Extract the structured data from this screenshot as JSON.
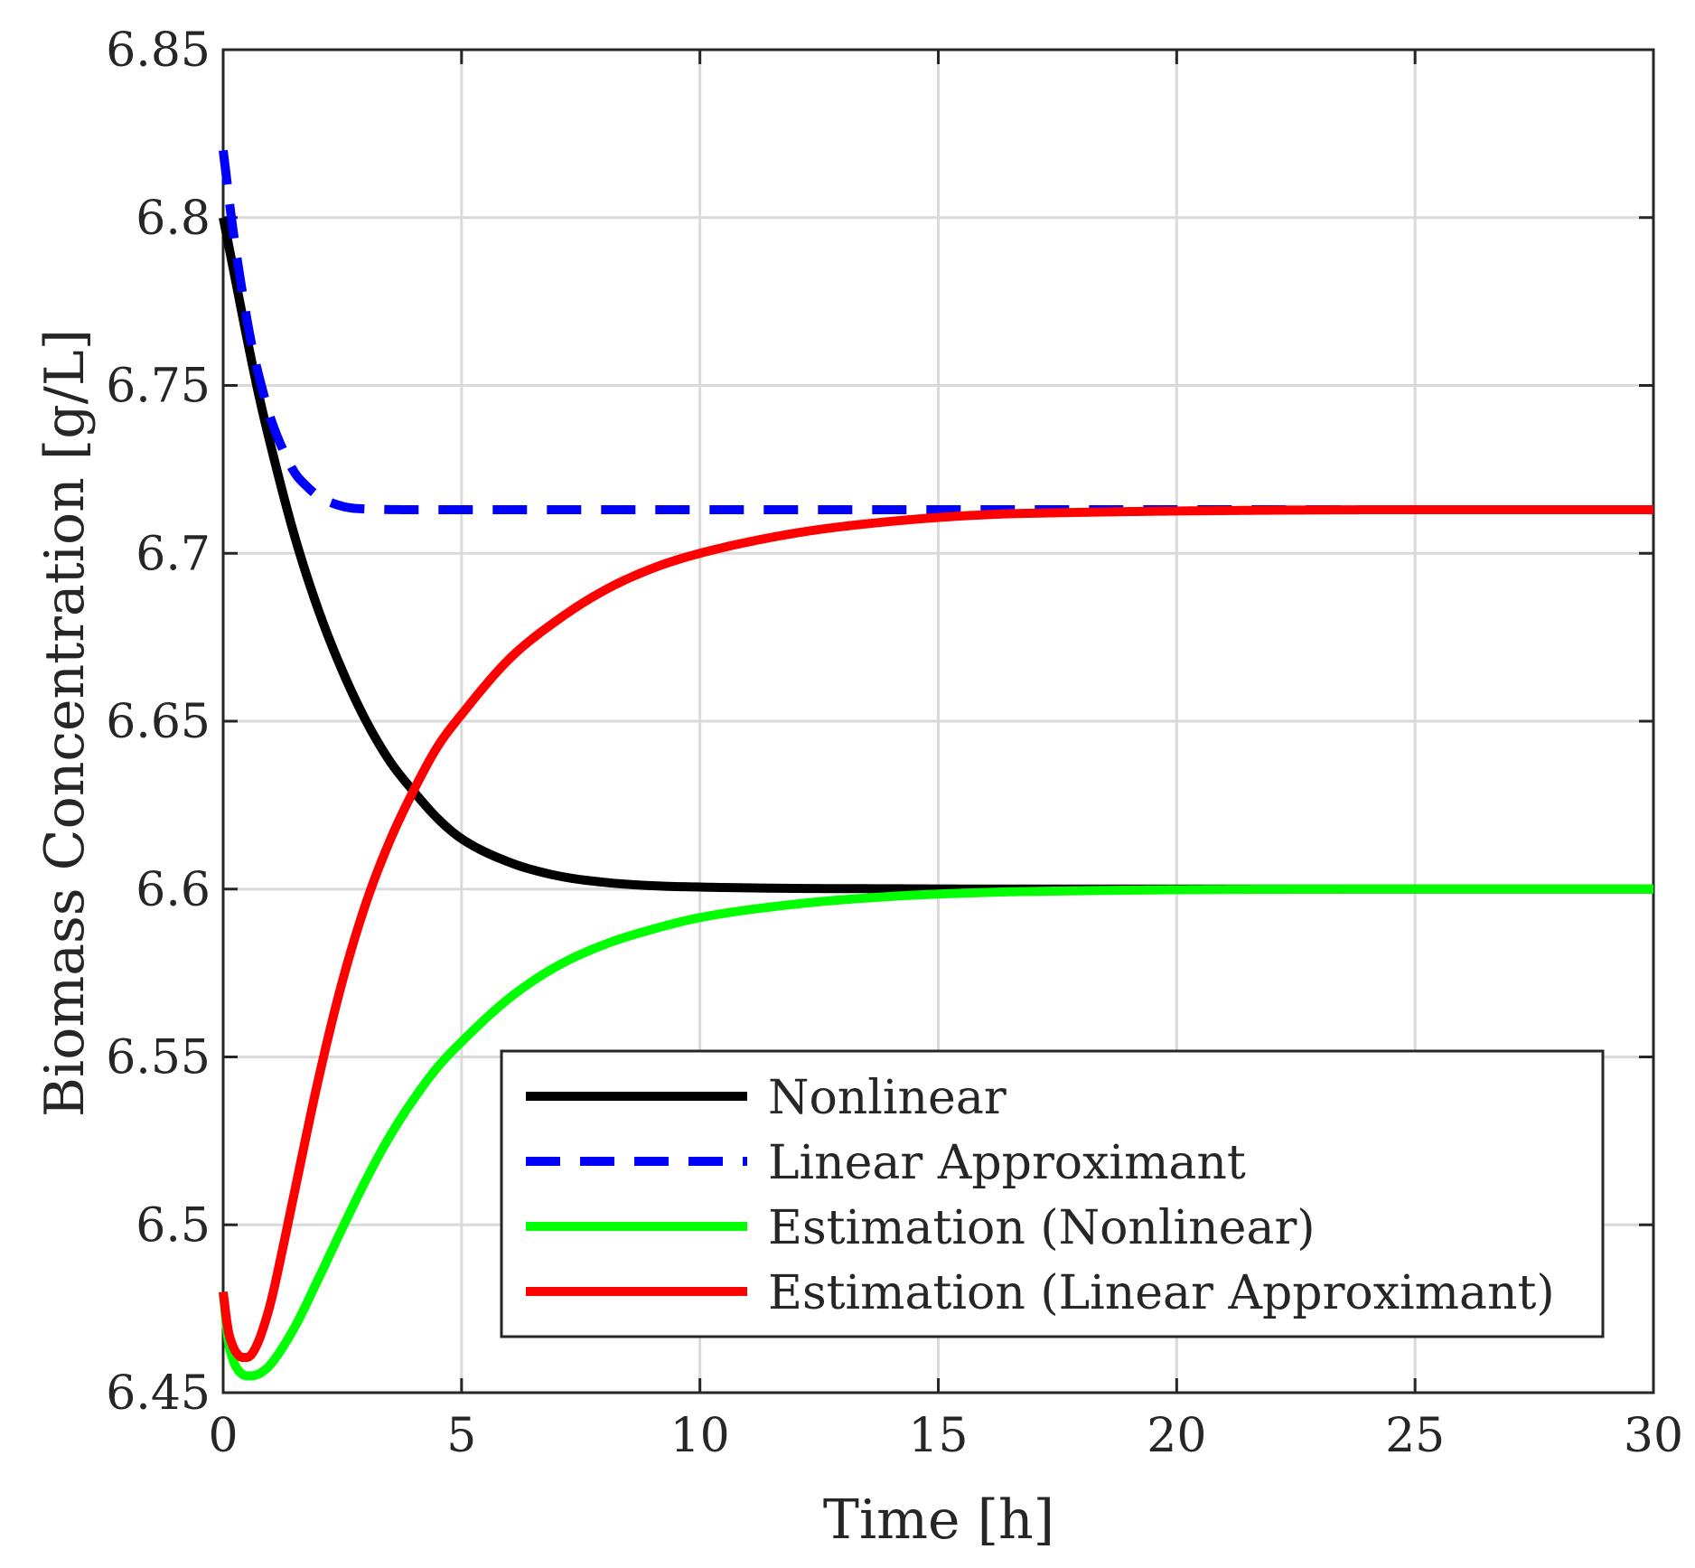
{
  "chart_data": {
    "type": "line",
    "title": "",
    "xlabel": "Time [h]",
    "ylabel": "Biomass Concentration [g/L]",
    "xlim": [
      0,
      30
    ],
    "ylim": [
      6.45,
      6.85
    ],
    "grid": true,
    "legend_position": "bottom-right",
    "x_ticks": [
      0,
      5,
      10,
      15,
      20,
      25,
      30
    ],
    "x_tick_labels": [
      "0",
      "5",
      "10",
      "15",
      "20",
      "25",
      "30"
    ],
    "y_ticks": [
      6.45,
      6.5,
      6.55,
      6.6,
      6.65,
      6.7,
      6.75,
      6.8,
      6.85
    ],
    "y_tick_labels": [
      "6.45",
      "6.5",
      "6.55",
      "6.6",
      "6.65",
      "6.7",
      "6.75",
      "6.8",
      "6.85"
    ],
    "series": [
      {
        "name": "Nonlinear",
        "color": "#000000",
        "style": "solid",
        "x": [
          0,
          0.25,
          0.5,
          0.75,
          1,
          1.5,
          2,
          2.5,
          3,
          3.5,
          4,
          4.5,
          5,
          6,
          7,
          8,
          9,
          10,
          12,
          14,
          16,
          18,
          20,
          25,
          30
        ],
        "y": [
          6.8,
          6.782,
          6.764,
          6.747,
          6.732,
          6.705,
          6.683,
          6.665,
          6.65,
          6.638,
          6.629,
          6.621,
          6.615,
          6.608,
          6.604,
          6.602,
          6.601,
          6.6006,
          6.6002,
          6.6001,
          6.6,
          6.6,
          6.6,
          6.6,
          6.6
        ]
      },
      {
        "name": "Linear Approximant",
        "color": "#0000ff",
        "style": "dashed",
        "x": [
          0,
          0.2,
          0.4,
          0.6,
          0.8,
          1,
          1.25,
          1.5,
          1.75,
          2,
          2.5,
          3,
          4,
          5,
          10,
          15,
          20,
          25,
          30
        ],
        "y": [
          6.82,
          6.797,
          6.778,
          6.762,
          6.75,
          6.74,
          6.731,
          6.724,
          6.72,
          6.717,
          6.714,
          6.7132,
          6.713,
          6.713,
          6.713,
          6.713,
          6.713,
          6.713,
          6.713
        ]
      },
      {
        "name": "Estimation (Nonlinear)",
        "color": "#00ff00",
        "style": "solid",
        "x": [
          0,
          0.1,
          0.2,
          0.3,
          0.4,
          0.5,
          0.6,
          0.7,
          0.8,
          1,
          1.5,
          2,
          2.5,
          3,
          3.5,
          4,
          4.5,
          5,
          6,
          7,
          8,
          9,
          10,
          12,
          14,
          16,
          18,
          20,
          25,
          30
        ],
        "y": [
          6.48,
          6.466,
          6.46,
          6.457,
          6.4555,
          6.455,
          6.455,
          6.4553,
          6.456,
          6.4585,
          6.4695,
          6.484,
          6.499,
          6.5135,
          6.5265,
          6.5375,
          6.547,
          6.5545,
          6.5675,
          6.577,
          6.5835,
          6.588,
          6.5915,
          6.5955,
          6.5978,
          6.599,
          6.5995,
          6.5998,
          6.6,
          6.6
        ]
      },
      {
        "name": "Estimation (Linear Approximant)",
        "color": "#ff0000",
        "style": "solid",
        "x": [
          0,
          0.1,
          0.2,
          0.3,
          0.4,
          0.5,
          0.6,
          0.7,
          0.8,
          1,
          1.25,
          1.5,
          2,
          2.5,
          3,
          3.5,
          4,
          4.5,
          5,
          6,
          7,
          8,
          9,
          10,
          12,
          14,
          16,
          18,
          20,
          25,
          30
        ],
        "y": [
          6.48,
          6.469,
          6.464,
          6.4615,
          6.4605,
          6.4605,
          6.4615,
          6.464,
          6.4675,
          6.477,
          6.493,
          6.51,
          6.5435,
          6.5725,
          6.596,
          6.6145,
          6.6295,
          6.6425,
          6.652,
          6.6685,
          6.68,
          6.689,
          6.6955,
          6.7,
          6.706,
          6.7095,
          6.7115,
          6.7122,
          6.7126,
          6.713,
          6.713
        ]
      }
    ]
  }
}
